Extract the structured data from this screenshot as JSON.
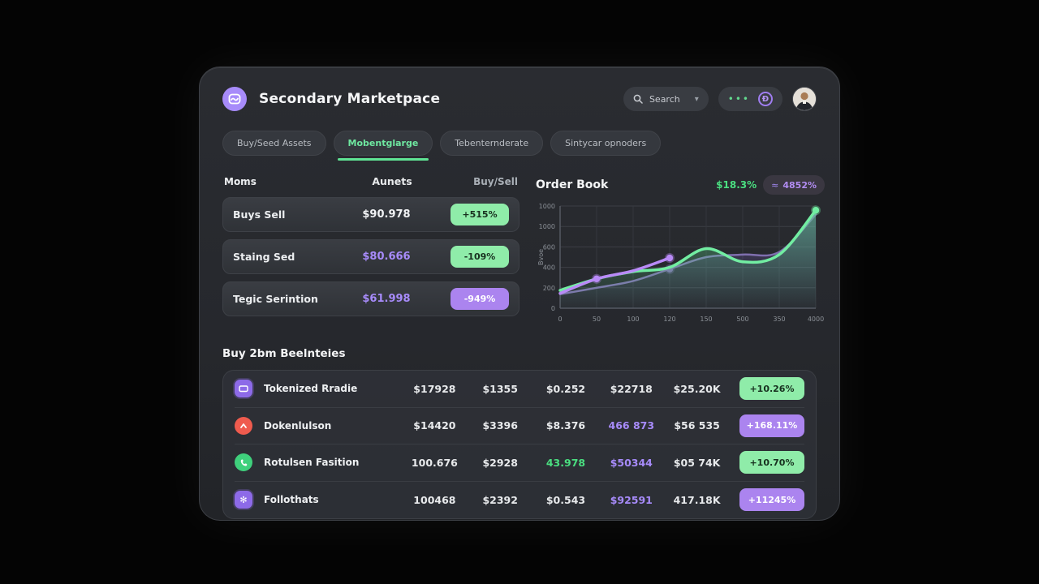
{
  "app": {
    "title": "Secondary Marketpace"
  },
  "header": {
    "search_label": "Search",
    "coin_glyph": "Ð",
    "dots_glyph": "•••"
  },
  "tabs": [
    {
      "label": "Buy/Seed Assets",
      "active": false
    },
    {
      "label": "Mobentglarge",
      "active": true
    },
    {
      "label": "Tebenternderate",
      "active": false
    },
    {
      "label": "Sintycar opnoders",
      "active": false
    }
  ],
  "left_table": {
    "headers": {
      "name": "Moms",
      "value": "Aunets",
      "action": "Buy/Sell"
    },
    "rows": [
      {
        "name": "Buys Sell",
        "value": "$90.978",
        "change": "+515%"
      },
      {
        "name": "Staing Sed",
        "value": "$80.666",
        "change": "-109%"
      },
      {
        "name": "Tegic Serintion",
        "value": "$61.998",
        "change": "-949%"
      }
    ]
  },
  "order_book": {
    "title": "Order Book",
    "stat": "$18.3%",
    "badge_icon": "≈",
    "badge": "4852%"
  },
  "chart_data": {
    "type": "line",
    "title": "Order Book",
    "ylabel": "Bvoe",
    "ymax": 1200,
    "y_ticks": [
      "1000",
      "1000",
      "600",
      "400",
      "200",
      "0"
    ],
    "x_ticks": [
      "0",
      "50",
      "100",
      "120",
      "150",
      "500",
      "350",
      "4000"
    ],
    "grid": true,
    "series": [
      {
        "name": "muted-purple",
        "color": "#7f6fae",
        "width": 2.5,
        "area": "purpleGrad",
        "values": [
          165,
          240,
          320,
          460,
          600,
          630,
          660,
          1100
        ],
        "dots": [
          3
        ]
      },
      {
        "name": "green",
        "color": "#72eda2",
        "width": 3.5,
        "area": "greenGrad",
        "values": [
          210,
          345,
          430,
          480,
          700,
          545,
          630,
          1150
        ],
        "dots": [
          7
        ]
      },
      {
        "name": "bright-purple",
        "color": "#b98af7",
        "width": 3.5,
        "area": null,
        "values": [
          175,
          345,
          440,
          590
        ],
        "dots": [
          1,
          3
        ]
      }
    ]
  },
  "holdings": {
    "title": "Buy 2bm Beelnteies",
    "rows": [
      {
        "name": "Tokenized Rradie",
        "icon": "card",
        "v1": "$17928",
        "v2": "$1355",
        "v3": "$0.252",
        "v4": "$22718",
        "v5": "$25.20K",
        "change": "+10.26%"
      },
      {
        "name": "Dokenlulson",
        "icon": "arrow-up",
        "v1": "$14420",
        "v2": "$3396",
        "v3": "$8.376",
        "v4": "466 873",
        "v5": "$56 535",
        "change": "+168.11%"
      },
      {
        "name": "Rotulsen Fasition",
        "icon": "phone",
        "v1": "100.676",
        "v2": "$2928",
        "v3": "43.978",
        "v4": "$50344",
        "v5": "$05 74K",
        "change": "+10.70%"
      },
      {
        "name": "Follothats",
        "icon": "flower",
        "v1": "100468",
        "v2": "$2392",
        "v3": "$0.543",
        "v4": "$92591",
        "v5": "417.18K",
        "change": "+11245%"
      }
    ]
  },
  "colors": {
    "accent_green": "#4ade80",
    "accent_purple": "#a78bfa",
    "pill_green_bg": "#8feca9",
    "pill_purple_bg": "#ab84ef",
    "icon_red": "#ef5b4e",
    "icon_green": "#3fd07c",
    "logo_purple": "#a78bfa",
    "card_bg": "#27292e",
    "page_bg": "#040404"
  }
}
